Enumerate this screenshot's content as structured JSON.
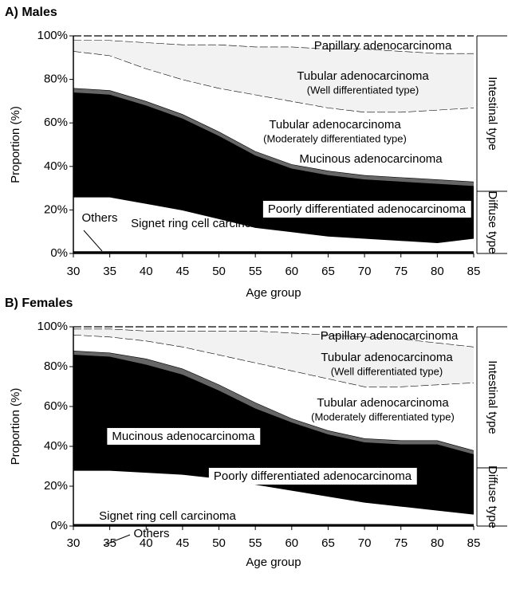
{
  "chart_data": [
    {
      "type": "area",
      "stacked": true,
      "title": "A) Males",
      "xlabel": "Age group",
      "ylabel": "Proportion (%)",
      "x": [
        30,
        35,
        40,
        45,
        50,
        55,
        60,
        65,
        70,
        75,
        80,
        85
      ],
      "xlim": [
        30,
        85
      ],
      "xticks": [
        30,
        35,
        40,
        45,
        50,
        55,
        60,
        65,
        70,
        75,
        80,
        85
      ],
      "ylim": [
        0,
        100
      ],
      "yticks": [
        {
          "value": 0,
          "label": "0%"
        },
        {
          "value": 20,
          "label": "20%"
        },
        {
          "value": 40,
          "label": "40%"
        },
        {
          "value": 60,
          "label": "60%"
        },
        {
          "value": 80,
          "label": "80%"
        },
        {
          "value": 100,
          "label": "100%"
        }
      ],
      "series": [
        {
          "name": "Others",
          "color": "#000000",
          "values": [
            1,
            1,
            1,
            1,
            1,
            1,
            1,
            1,
            1,
            1,
            1,
            1
          ]
        },
        {
          "name": "Signet ring cell carcinoma",
          "color": "#ffffff",
          "values": [
            25,
            25,
            22,
            19,
            15,
            11,
            9,
            7,
            6,
            5,
            4,
            6
          ]
        },
        {
          "name": "Poorly differentiated adenocarcinoma",
          "color": "#000000",
          "values": [
            48,
            47,
            45,
            42,
            38,
            33,
            29,
            28,
            27,
            27,
            27,
            24
          ]
        },
        {
          "name": "Mucinous adenocarcinoma",
          "color": "#666666",
          "values": [
            2,
            2,
            2,
            2,
            2,
            2,
            2,
            2,
            2,
            2,
            2,
            2
          ]
        },
        {
          "name": "Tubular adenocarcinoma",
          "note": "(Moderately differentiated type)",
          "color": "#ffffff",
          "values": [
            17,
            16,
            15,
            16,
            20,
            26,
            29,
            29,
            29,
            30,
            32,
            34
          ]
        },
        {
          "name": "Tubular adenocarcinoma",
          "note": "(Well differentiated type)",
          "color": "#f2f2f2",
          "values": [
            5,
            7,
            12,
            16,
            20,
            22,
            25,
            27,
            29,
            28,
            26,
            25
          ]
        },
        {
          "name": "Papillary adenocarcinoma",
          "color": "#ffffff",
          "values": [
            2,
            2,
            3,
            4,
            4,
            5,
            5,
            6,
            6,
            7,
            8,
            8
          ]
        }
      ],
      "groups": [
        {
          "label": "Intestinal type"
        },
        {
          "label": "Diffuse type"
        }
      ]
    },
    {
      "type": "area",
      "stacked": true,
      "title": "B) Females",
      "xlabel": "Age group",
      "ylabel": "Proportion (%)",
      "x": [
        30,
        35,
        40,
        45,
        50,
        55,
        60,
        65,
        70,
        75,
        80,
        85
      ],
      "xlim": [
        30,
        85
      ],
      "xticks": [
        30,
        35,
        40,
        45,
        50,
        55,
        60,
        65,
        70,
        75,
        80,
        85
      ],
      "ylim": [
        0,
        100
      ],
      "yticks": [
        {
          "value": 0,
          "label": "0%"
        },
        {
          "value": 20,
          "label": "20%"
        },
        {
          "value": 40,
          "label": "40%"
        },
        {
          "value": 60,
          "label": "60%"
        },
        {
          "value": 80,
          "label": "80%"
        },
        {
          "value": 100,
          "label": "100%"
        }
      ],
      "series": [
        {
          "name": "Others",
          "color": "#000000",
          "values": [
            1,
            1,
            1,
            1,
            1,
            1,
            1,
            1,
            1,
            1,
            1,
            1
          ]
        },
        {
          "name": "Signet ring cell carcinoma",
          "color": "#ffffff",
          "values": [
            27,
            27,
            26,
            25,
            23,
            20,
            17,
            14,
            11,
            9,
            7,
            5
          ]
        },
        {
          "name": "Poorly differentiated adenocarcinoma",
          "color": "#000000",
          "values": [
            58,
            57,
            54,
            50,
            44,
            38,
            34,
            31,
            30,
            31,
            33,
            30
          ]
        },
        {
          "name": "Mucinous adenocarcinoma",
          "color": "#666666",
          "values": [
            2,
            2,
            3,
            3,
            3,
            3,
            2,
            2,
            2,
            2,
            2,
            2
          ]
        },
        {
          "name": "Tubular adenocarcinoma",
          "note": "(Moderately differentiated type)",
          "color": "#ffffff",
          "values": [
            8,
            8,
            9,
            11,
            15,
            20,
            24,
            26,
            26,
            27,
            28,
            34
          ]
        },
        {
          "name": "Tubular adenocarcinoma",
          "note": "(Well differentiated type)",
          "color": "#f2f2f2",
          "values": [
            3,
            4,
            5,
            8,
            12,
            16,
            19,
            22,
            25,
            24,
            21,
            18
          ]
        },
        {
          "name": "Papillary adenocarcinoma",
          "color": "#ffffff",
          "values": [
            1,
            1,
            2,
            2,
            2,
            2,
            3,
            4,
            5,
            6,
            8,
            10
          ]
        }
      ],
      "groups": [
        {
          "label": "Intestinal type"
        },
        {
          "label": "Diffuse type"
        }
      ]
    }
  ]
}
